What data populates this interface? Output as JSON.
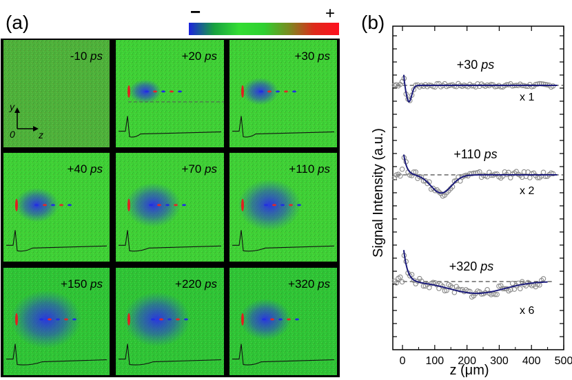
{
  "panel_a": {
    "label": "(a)",
    "colorbar": {
      "minus": "−",
      "plus": "+",
      "stops": [
        "#1a22dd",
        "#18a040",
        "#33dd33",
        "#2fd030",
        "#7a8a20",
        "#dd2a1a",
        "#ff1020"
      ]
    },
    "tiles": [
      {
        "label": "-10",
        "unit": "ps",
        "has_trace": false,
        "blue": 0,
        "bg": "#4fb03a"
      },
      {
        "label": "+20",
        "unit": "ps",
        "has_trace": true,
        "blue": 0.25,
        "bg": "#3fd035",
        "dashed_line": true
      },
      {
        "label": "+30",
        "unit": "ps",
        "has_trace": true,
        "blue": 0.3,
        "bg": "#3fd035"
      },
      {
        "label": "+40",
        "unit": "ps",
        "has_trace": true,
        "blue": 0.4,
        "bg": "#3fd035"
      },
      {
        "label": "+70",
        "unit": "ps",
        "has_trace": true,
        "blue": 0.55,
        "bg": "#3fd035"
      },
      {
        "label": "+110",
        "unit": "ps",
        "has_trace": true,
        "blue": 0.65,
        "bg": "#3fd035"
      },
      {
        "label": "+150",
        "unit": "ps",
        "has_trace": true,
        "blue": 0.75,
        "bg": "#2fc435"
      },
      {
        "label": "+220",
        "unit": "ps",
        "has_trace": true,
        "blue": 0.7,
        "bg": "#2fc435"
      },
      {
        "label": "+320",
        "unit": "ps",
        "has_trace": true,
        "blue": 0.5,
        "bg": "#2fc435"
      }
    ],
    "axes_inset": {
      "y": "y",
      "z": "z",
      "origin": "0"
    }
  },
  "panel_b": {
    "label": "(b)",
    "ylabel": "Signal Intensity (a.u.)",
    "xlabel": "z (μm)"
  },
  "chart_data": {
    "type": "scatter",
    "title": "",
    "xlabel": "z (μm)",
    "ylabel": "Signal Intensity (a.u.)",
    "xlim": [
      -30,
      500
    ],
    "xticks": [
      0,
      100,
      200,
      300,
      400,
      500
    ],
    "series": [
      {
        "name": "+30",
        "unit": "ps",
        "scale": "x 1",
        "baseline": 0,
        "fit_params": {
          "peak": 1.2,
          "dip": -0.55,
          "dip_center": 20,
          "dip_width": 12,
          "decay": 4
        }
      },
      {
        "name": "+110",
        "unit": "ps",
        "scale": "x 2",
        "baseline": 0,
        "fit_params": {
          "peak": 1.0,
          "dip": -0.6,
          "dip_center": 120,
          "dip_width": 45,
          "decay": 10
        }
      },
      {
        "name": "+320",
        "unit": "ps",
        "scale": "x 6",
        "baseline": 0,
        "fit_params": {
          "peak": 1.7,
          "dip": -0.45,
          "dip_center": 230,
          "dip_width": 120,
          "decay": 12
        }
      }
    ]
  }
}
